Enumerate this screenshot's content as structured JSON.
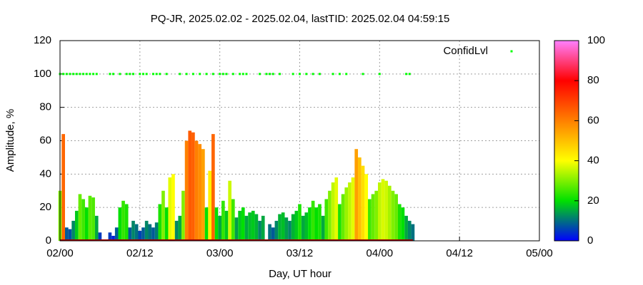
{
  "chart_data": {
    "type": "bar",
    "title": "PQ-JR, 2025.02.02 - 2025.02.04, lastTID: 2025.02.04 04:59:15",
    "xlabel": "Day, UT hour",
    "ylabel": "Amplitude, %",
    "xlim": [
      0,
      72
    ],
    "xticks": [
      {
        "value": 0,
        "label": "02/00"
      },
      {
        "value": 12,
        "label": "02/12"
      },
      {
        "value": 24,
        "label": "03/00"
      },
      {
        "value": 36,
        "label": "03/12"
      },
      {
        "value": 48,
        "label": "04/00"
      },
      {
        "value": 60,
        "label": "04/12"
      },
      {
        "value": 72,
        "label": "05/00"
      }
    ],
    "ylim": [
      0,
      120
    ],
    "yticks": [
      0,
      20,
      40,
      60,
      80,
      100,
      120
    ],
    "grid": true,
    "x": [
      0,
      0.5,
      1,
      1.5,
      2,
      2.5,
      3,
      3.5,
      4,
      4.5,
      5,
      5.5,
      6,
      6.5,
      7,
      7.5,
      8,
      8.5,
      9,
      9.5,
      10,
      10.5,
      11,
      11.5,
      12,
      12.5,
      13,
      13.5,
      14,
      14.5,
      15,
      15.5,
      16,
      16.5,
      17,
      17.5,
      18,
      18.5,
      19,
      19.5,
      20,
      20.5,
      21,
      21.5,
      22,
      22.5,
      23,
      23.5,
      24,
      24.5,
      25,
      25.5,
      26,
      26.5,
      27,
      27.5,
      28,
      28.5,
      29,
      29.5,
      30,
      30.5,
      31,
      31.5,
      32,
      32.5,
      33,
      33.5,
      34,
      34.5,
      35,
      35.5,
      36,
      36.5,
      37,
      37.5,
      38,
      38.5,
      39,
      39.5,
      40,
      40.5,
      41,
      41.5,
      42,
      42.5,
      43,
      43.5,
      44,
      44.5,
      45,
      45.5,
      46,
      46.5,
      47,
      47.5,
      48,
      48.5,
      49,
      49.5,
      50,
      50.5,
      51,
      51.5,
      52,
      52.5,
      53
    ],
    "values": [
      30,
      64,
      8,
      7,
      12,
      18,
      28,
      25,
      20,
      27,
      26,
      15,
      5,
      null,
      null,
      5,
      3,
      8,
      20,
      24,
      22,
      8,
      12,
      10,
      6,
      8,
      12,
      10,
      8,
      11,
      22,
      30,
      20,
      38,
      40,
      12,
      15,
      30,
      60,
      66,
      65,
      60,
      58,
      55,
      20,
      42,
      64,
      20,
      15,
      24,
      18,
      36,
      25,
      14,
      18,
      20,
      15,
      17,
      18,
      16,
      12,
      15,
      null,
      10,
      8,
      12,
      16,
      17,
      14,
      12,
      16,
      18,
      22,
      15,
      17,
      20,
      24,
      20,
      22,
      15,
      25,
      30,
      35,
      38,
      22,
      28,
      32,
      35,
      38,
      55,
      50,
      45,
      40,
      25,
      28,
      30,
      35,
      37,
      36,
      33,
      30,
      28,
      22,
      20,
      15,
      12,
      10
    ],
    "scatter": {
      "name": "ConfidLvl",
      "color": "#00ff00",
      "x": [
        0,
        0.5,
        1,
        1.5,
        2,
        2.5,
        3,
        3.5,
        4,
        4.5,
        5,
        5.5,
        7.5,
        8,
        9,
        10,
        10.5,
        11,
        12,
        12.5,
        13,
        14,
        14.5,
        15,
        16,
        18,
        19,
        20,
        21,
        22,
        23,
        24,
        24.5,
        25,
        26,
        27,
        27.5,
        28,
        30,
        31,
        31.5,
        32,
        33,
        35,
        36,
        37,
        38,
        39,
        41,
        42,
        43,
        45.5,
        48,
        52,
        52.5
      ],
      "values": [
        100,
        100,
        100,
        100,
        100,
        100,
        100,
        100,
        100,
        100,
        100,
        100,
        100,
        100,
        100,
        100,
        100,
        100,
        100,
        100,
        100,
        100,
        100,
        100,
        100,
        100,
        100,
        100,
        100,
        100,
        100,
        100,
        100,
        100,
        100,
        100,
        100,
        100,
        100,
        100,
        100,
        100,
        100,
        100,
        100,
        100,
        100,
        100,
        100,
        100,
        100,
        100,
        100,
        100,
        100
      ]
    },
    "colorbar": {
      "lim": [
        0,
        100
      ],
      "ticks": [
        0,
        20,
        40,
        60,
        80,
        100
      ],
      "palette": [
        "#0000ff",
        "#00e000",
        "#ffff00",
        "#ff8000",
        "#ff0000",
        "#ff80ff"
      ]
    }
  }
}
